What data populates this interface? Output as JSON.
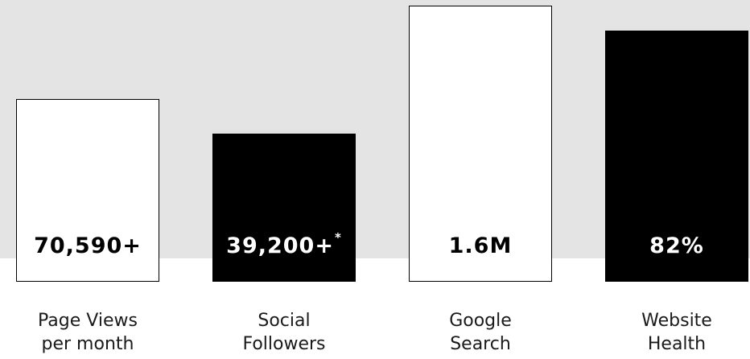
{
  "chart_data": {
    "type": "bar",
    "categories": [
      "Page Views per month",
      "Social Followers",
      "Google Search",
      "Website Health"
    ],
    "values": [
      0.64,
      0.52,
      0.97,
      0.88
    ],
    "series": [
      {
        "values": [
          0.64,
          0.52,
          0.97,
          0.88
        ]
      }
    ],
    "value_labels": [
      {
        "text": "70,590+",
        "suffix": ""
      },
      {
        "text": "39,200+",
        "suffix": "*"
      },
      {
        "text": "1.6M",
        "suffix": ""
      },
      {
        "text": "82%",
        "suffix": ""
      }
    ],
    "category_lines": [
      [
        "Page Views",
        "per month"
      ],
      [
        "Social",
        "Followers"
      ],
      [
        "Google",
        "Search"
      ],
      [
        "Website",
        "Health"
      ]
    ],
    "bar_styles": [
      "light",
      "dark",
      "light",
      "dark"
    ],
    "colors": {
      "background_band": "#e4e4e4",
      "light_bar": "#ffffff",
      "dark_bar": "#000000",
      "outline": "#000000"
    },
    "title": "",
    "xlabel": "",
    "ylabel": "",
    "ylim": [
      0,
      1
    ],
    "grid": false,
    "legend": "none"
  }
}
